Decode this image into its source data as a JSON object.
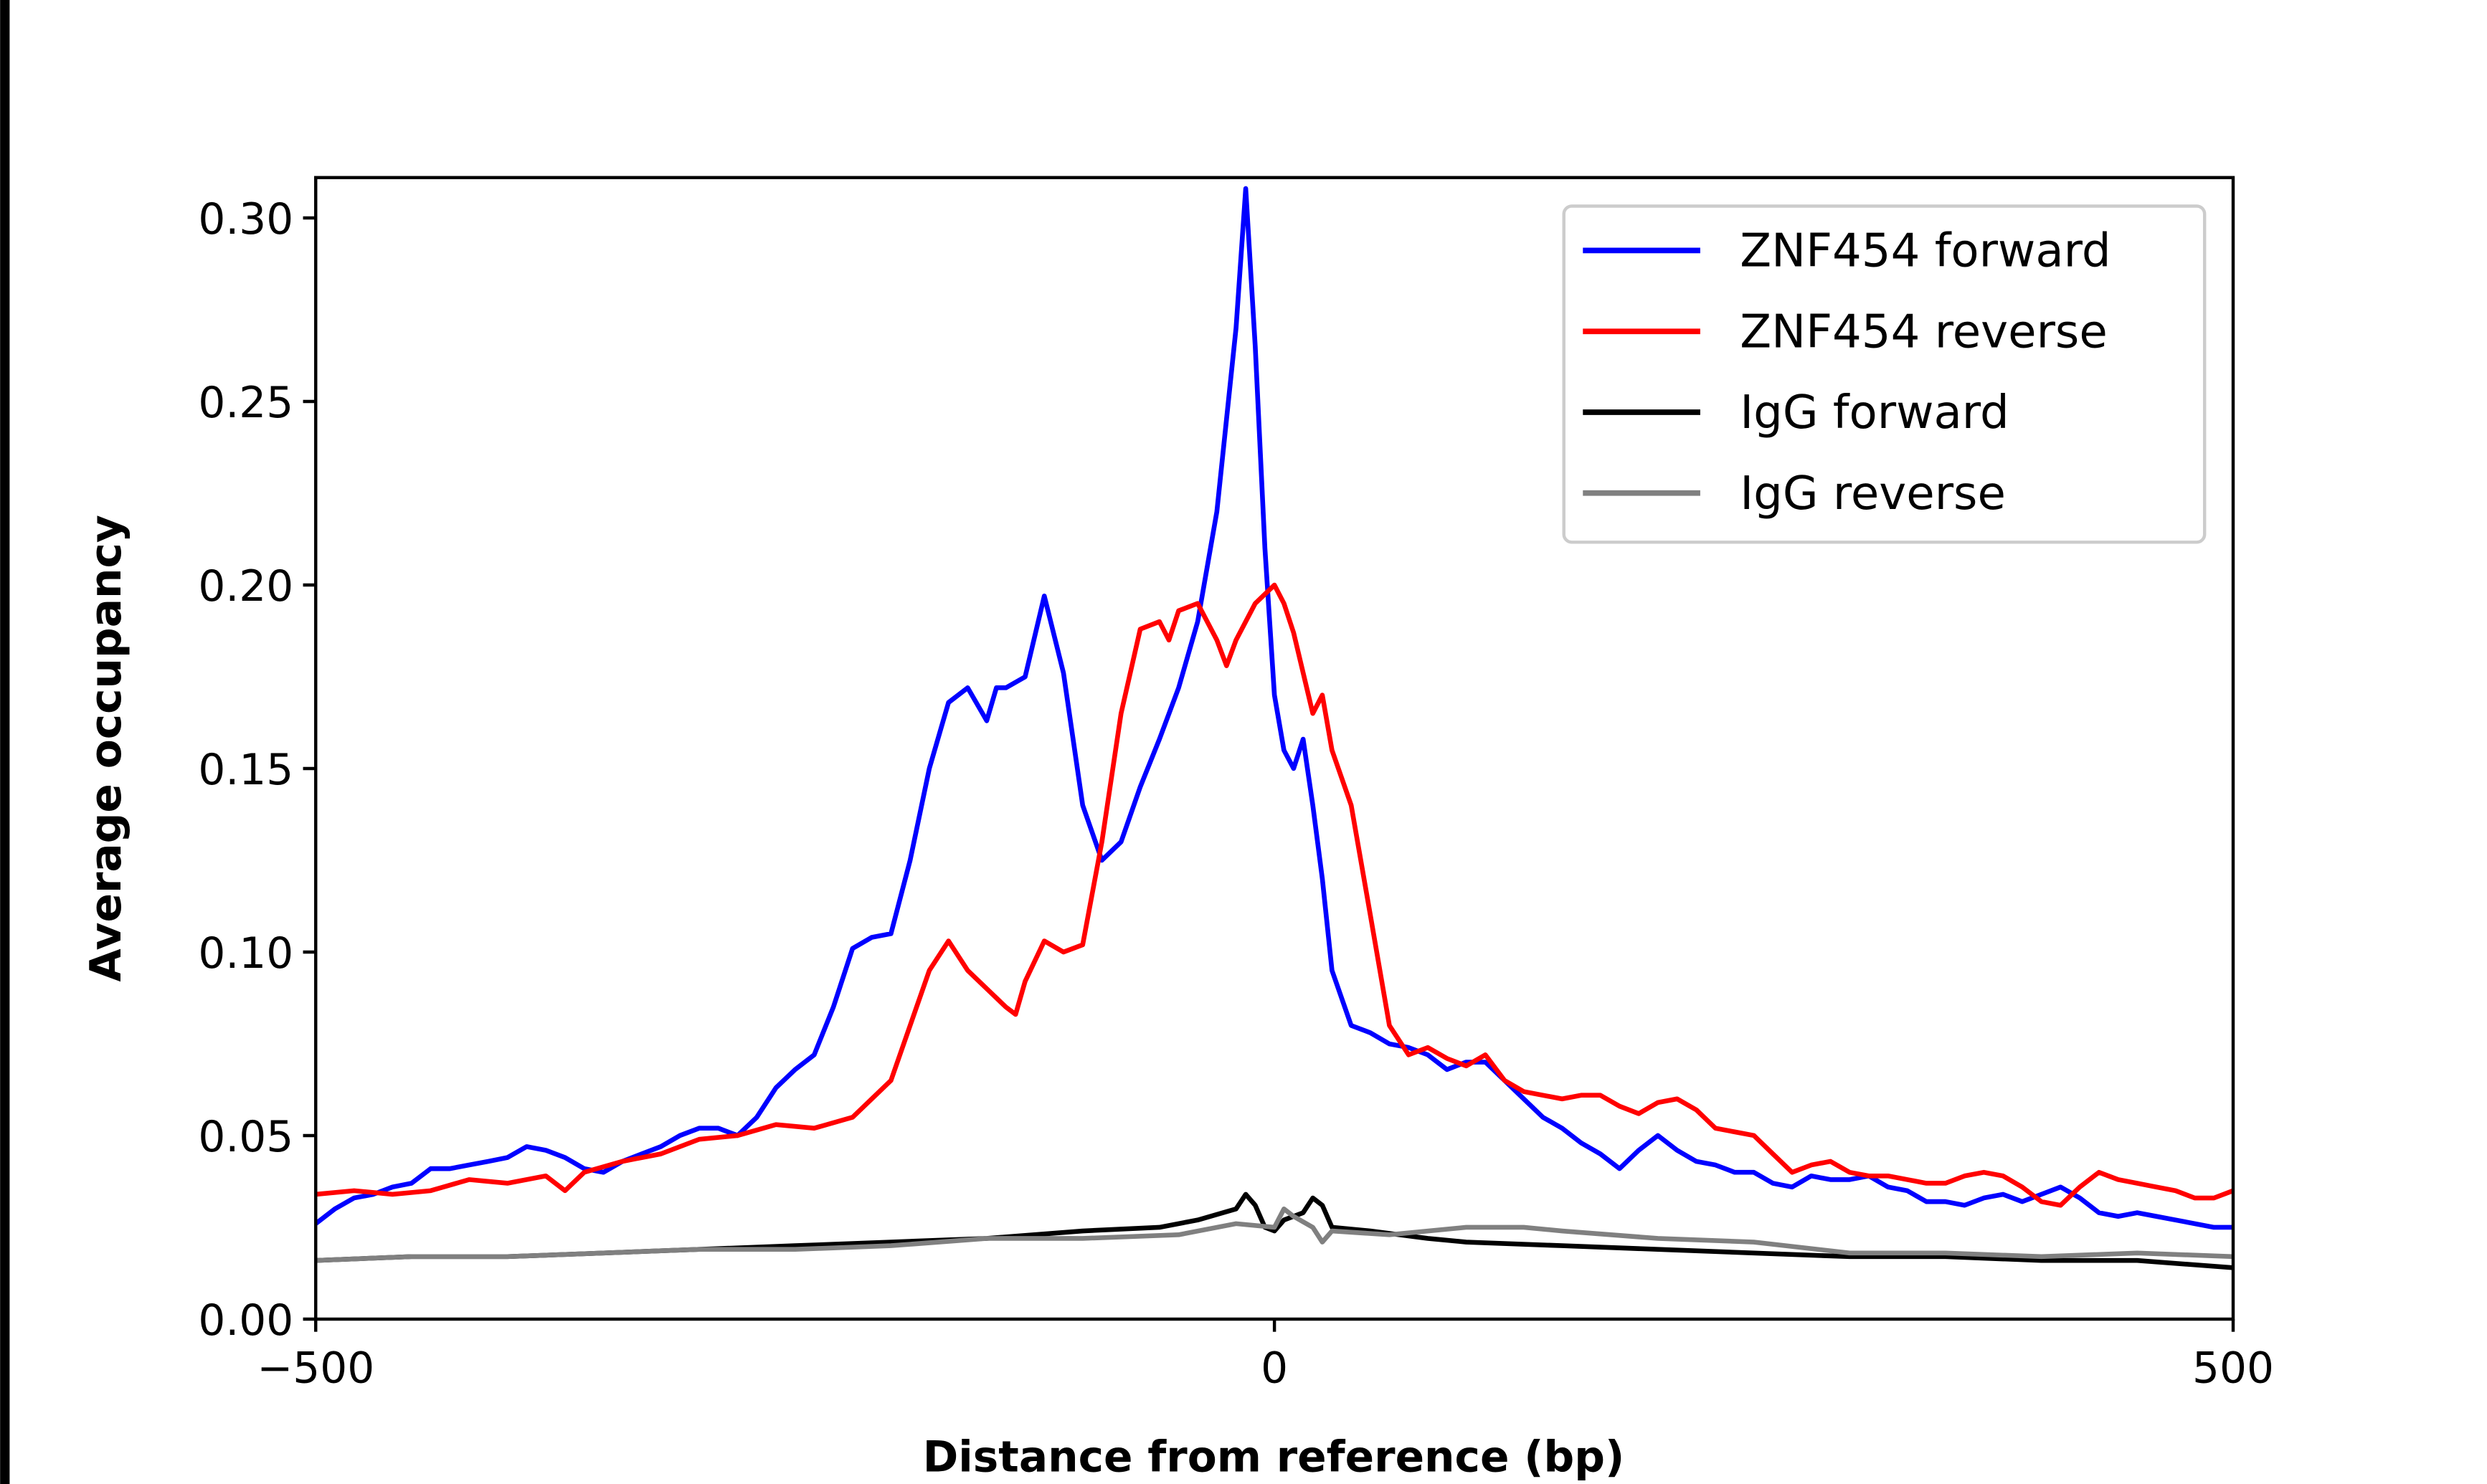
{
  "chart_data": {
    "type": "line",
    "title": "",
    "xlabel": "Distance from reference (bp)",
    "ylabel": "Average occupancy",
    "xlim": [
      -500,
      500
    ],
    "ylim": [
      0,
      0.311
    ],
    "xticks": [
      -500,
      0,
      500
    ],
    "xtick_labels": [
      "−500",
      "0",
      "500"
    ],
    "yticks": [
      0,
      0.05,
      0.1,
      0.15,
      0.2,
      0.25,
      0.3
    ],
    "ytick_labels": [
      "0.00",
      "0.05",
      "0.10",
      "0.15",
      "0.20",
      "0.25",
      "0.30"
    ],
    "grid": false,
    "legend_position": "top-right",
    "series": [
      {
        "name": "ZNF454 forward",
        "color": "#0000ff",
        "x": [
          -500,
          -490,
          -480,
          -470,
          -460,
          -450,
          -440,
          -430,
          -420,
          -410,
          -400,
          -390,
          -380,
          -370,
          -360,
          -350,
          -340,
          -330,
          -320,
          -310,
          -300,
          -290,
          -280,
          -270,
          -260,
          -250,
          -240,
          -230,
          -220,
          -210,
          -200,
          -190,
          -180,
          -170,
          -160,
          -150,
          -145,
          -140,
          -130,
          -120,
          -110,
          -100,
          -90,
          -80,
          -70,
          -60,
          -50,
          -40,
          -30,
          -20,
          -15,
          -10,
          -5,
          0,
          5,
          10,
          15,
          20,
          25,
          30,
          40,
          50,
          60,
          70,
          80,
          90,
          100,
          110,
          120,
          130,
          140,
          150,
          160,
          170,
          180,
          190,
          200,
          210,
          220,
          230,
          240,
          250,
          260,
          270,
          280,
          290,
          300,
          310,
          320,
          330,
          340,
          350,
          360,
          370,
          380,
          390,
          400,
          410,
          420,
          430,
          440,
          450,
          460,
          470,
          480,
          490,
          500
        ],
        "y": [
          0.026,
          0.03,
          0.033,
          0.034,
          0.036,
          0.037,
          0.041,
          0.041,
          0.042,
          0.043,
          0.044,
          0.047,
          0.046,
          0.044,
          0.041,
          0.04,
          0.043,
          0.045,
          0.047,
          0.05,
          0.052,
          0.052,
          0.05,
          0.055,
          0.063,
          0.068,
          0.072,
          0.085,
          0.101,
          0.104,
          0.105,
          0.125,
          0.15,
          0.168,
          0.172,
          0.163,
          0.172,
          0.172,
          0.175,
          0.197,
          0.176,
          0.14,
          0.125,
          0.13,
          0.145,
          0.158,
          0.172,
          0.19,
          0.22,
          0.27,
          0.308,
          0.265,
          0.21,
          0.17,
          0.155,
          0.15,
          0.158,
          0.14,
          0.12,
          0.095,
          0.08,
          0.078,
          0.075,
          0.074,
          0.072,
          0.068,
          0.07,
          0.07,
          0.065,
          0.06,
          0.055,
          0.052,
          0.048,
          0.045,
          0.041,
          0.046,
          0.05,
          0.046,
          0.043,
          0.042,
          0.04,
          0.04,
          0.037,
          0.036,
          0.039,
          0.038,
          0.038,
          0.039,
          0.036,
          0.035,
          0.032,
          0.032,
          0.031,
          0.033,
          0.034,
          0.032,
          0.034,
          0.036,
          0.033,
          0.029,
          0.028,
          0.029,
          0.028,
          0.027,
          0.026,
          0.025,
          0.025
        ]
      },
      {
        "name": "ZNF454 reverse",
        "color": "#ff0000",
        "x": [
          -500,
          -480,
          -460,
          -440,
          -420,
          -400,
          -380,
          -370,
          -360,
          -340,
          -320,
          -300,
          -280,
          -260,
          -240,
          -220,
          -200,
          -190,
          -180,
          -170,
          -160,
          -150,
          -140,
          -135,
          -130,
          -120,
          -110,
          -100,
          -90,
          -80,
          -70,
          -60,
          -55,
          -50,
          -40,
          -30,
          -25,
          -20,
          -10,
          0,
          5,
          10,
          20,
          25,
          30,
          40,
          50,
          60,
          70,
          80,
          90,
          100,
          110,
          120,
          130,
          140,
          150,
          160,
          170,
          180,
          190,
          200,
          210,
          220,
          230,
          240,
          250,
          260,
          270,
          280,
          290,
          300,
          310,
          320,
          330,
          340,
          350,
          360,
          370,
          380,
          390,
          400,
          410,
          420,
          430,
          440,
          450,
          460,
          470,
          480,
          490,
          500
        ],
        "y": [
          0.034,
          0.035,
          0.034,
          0.035,
          0.038,
          0.037,
          0.039,
          0.035,
          0.04,
          0.043,
          0.045,
          0.049,
          0.05,
          0.053,
          0.052,
          0.055,
          0.065,
          0.08,
          0.095,
          0.103,
          0.095,
          0.09,
          0.085,
          0.083,
          0.092,
          0.103,
          0.1,
          0.102,
          0.13,
          0.165,
          0.188,
          0.19,
          0.185,
          0.193,
          0.195,
          0.185,
          0.178,
          0.185,
          0.195,
          0.2,
          0.195,
          0.187,
          0.165,
          0.17,
          0.155,
          0.14,
          0.11,
          0.08,
          0.072,
          0.074,
          0.071,
          0.069,
          0.072,
          0.065,
          0.062,
          0.061,
          0.06,
          0.061,
          0.061,
          0.058,
          0.056,
          0.059,
          0.06,
          0.057,
          0.052,
          0.051,
          0.05,
          0.045,
          0.04,
          0.042,
          0.043,
          0.04,
          0.039,
          0.039,
          0.038,
          0.037,
          0.037,
          0.039,
          0.04,
          0.039,
          0.036,
          0.032,
          0.031,
          0.036,
          0.04,
          0.038,
          0.037,
          0.036,
          0.035,
          0.033,
          0.033,
          0.035
        ]
      },
      {
        "name": "IgG forward",
        "color": "#000000",
        "x": [
          -500,
          -450,
          -400,
          -350,
          -300,
          -250,
          -200,
          -150,
          -100,
          -60,
          -40,
          -20,
          -15,
          -10,
          -5,
          0,
          5,
          15,
          20,
          25,
          30,
          50,
          80,
          100,
          150,
          200,
          250,
          300,
          350,
          400,
          450,
          500
        ],
        "y": [
          0.016,
          0.017,
          0.017,
          0.018,
          0.019,
          0.02,
          0.021,
          0.022,
          0.024,
          0.025,
          0.027,
          0.03,
          0.034,
          0.031,
          0.025,
          0.024,
          0.027,
          0.029,
          0.033,
          0.031,
          0.025,
          0.024,
          0.022,
          0.021,
          0.02,
          0.019,
          0.018,
          0.017,
          0.017,
          0.016,
          0.016,
          0.014
        ]
      },
      {
        "name": "IgG reverse",
        "color": "#808080",
        "x": [
          -500,
          -450,
          -400,
          -350,
          -300,
          -250,
          -200,
          -150,
          -100,
          -50,
          -20,
          0,
          5,
          10,
          20,
          25,
          30,
          60,
          100,
          130,
          150,
          200,
          250,
          300,
          350,
          400,
          450,
          500
        ],
        "y": [
          0.016,
          0.017,
          0.017,
          0.018,
          0.019,
          0.019,
          0.02,
          0.022,
          0.022,
          0.023,
          0.026,
          0.025,
          0.03,
          0.028,
          0.025,
          0.021,
          0.024,
          0.023,
          0.025,
          0.025,
          0.024,
          0.022,
          0.021,
          0.018,
          0.018,
          0.017,
          0.018,
          0.017
        ]
      }
    ]
  }
}
